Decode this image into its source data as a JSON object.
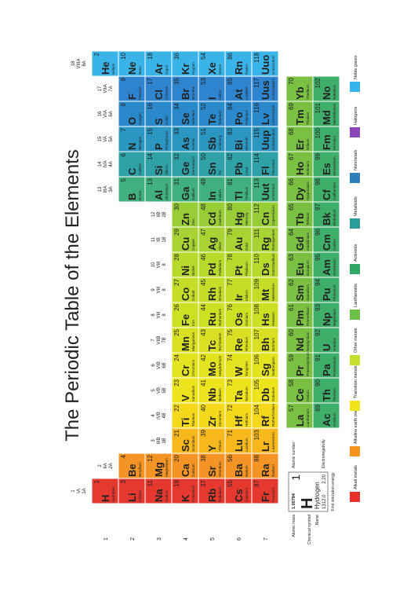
{
  "title": "The Periodic Table of the Elements",
  "groups": [
    [
      "1",
      "IA",
      "1A"
    ],
    [
      "2",
      "IIA",
      "2A"
    ],
    [
      "3",
      "IIIB",
      "3B"
    ],
    [
      "4",
      "IVB",
      "4B"
    ],
    [
      "5",
      "VB",
      "5B"
    ],
    [
      "6",
      "VIB",
      "6B"
    ],
    [
      "7",
      "VIIB",
      "7B"
    ],
    [
      "8",
      "VIII",
      "8"
    ],
    [
      "9",
      "VIII",
      "8"
    ],
    [
      "10",
      "VIII",
      "8"
    ],
    [
      "11",
      "IB",
      "1B"
    ],
    [
      "12",
      "IIB",
      "2B"
    ],
    [
      "13",
      "IIIA",
      "3A"
    ],
    [
      "14",
      "IVA",
      "4A"
    ],
    [
      "15",
      "VA",
      "5A"
    ],
    [
      "16",
      "VIA",
      "6A"
    ],
    [
      "17",
      "VIIA",
      "7A"
    ],
    [
      "18",
      "VIIIA",
      "8A"
    ]
  ],
  "periods": [
    "1",
    "2",
    "3",
    "4",
    "5",
    "6",
    "7"
  ],
  "group_colors": [
    "#e5392f",
    "#f39424",
    "#f7b81e",
    "#f3d81c",
    "#eee41e",
    "#e4e31f",
    "#d9e021",
    "#cde024",
    "#c3dd28",
    "#b9d92c",
    "#a9d332",
    "#98cd38",
    "#3fb07e",
    "#2fa2a8",
    "#2b96c2",
    "#2a89cb",
    "#2f84d0",
    "#3ab4e8"
  ],
  "lanthanide_color": "#7ac143",
  "actinide_color": "#3fae6a",
  "table": {
    "rows": [
      [
        [
          1,
          "H",
          "Hydrogen"
        ],
        null,
        null,
        null,
        null,
        null,
        null,
        null,
        null,
        null,
        null,
        null,
        null,
        null,
        null,
        null,
        null,
        [
          2,
          "He",
          "Helium"
        ]
      ],
      [
        [
          3,
          "Li",
          "Lithium"
        ],
        [
          4,
          "Be",
          "Beryllium"
        ],
        null,
        null,
        null,
        null,
        null,
        null,
        null,
        null,
        null,
        null,
        [
          5,
          "B",
          "Boron"
        ],
        [
          6,
          "C",
          "Carbon"
        ],
        [
          7,
          "N",
          "Nitrogen"
        ],
        [
          8,
          "O",
          "Oxygen"
        ],
        [
          9,
          "F",
          "Fluorine"
        ],
        [
          10,
          "Ne",
          "Neon"
        ]
      ],
      [
        [
          11,
          "Na",
          "Sodium"
        ],
        [
          12,
          "Mg",
          "Magnesium"
        ],
        null,
        null,
        null,
        null,
        null,
        null,
        null,
        null,
        null,
        null,
        [
          13,
          "Al",
          "Aluminium"
        ],
        [
          14,
          "Si",
          "Silicon"
        ],
        [
          15,
          "P",
          "Phosphorus"
        ],
        [
          16,
          "S",
          "Sulfur"
        ],
        [
          17,
          "Cl",
          "Chlorine"
        ],
        [
          18,
          "Ar",
          "Argon"
        ]
      ],
      [
        [
          19,
          "K",
          "Potassium"
        ],
        [
          20,
          "Ca",
          "Calcium"
        ],
        [
          21,
          "Sc",
          "Scandium"
        ],
        [
          22,
          "Ti",
          "Titanium"
        ],
        [
          23,
          "V",
          "Vanadium"
        ],
        [
          24,
          "Cr",
          "Chromium"
        ],
        [
          25,
          "Mn",
          "Manganese"
        ],
        [
          26,
          "Fe",
          "Iron"
        ],
        [
          27,
          "Co",
          "Cobalt"
        ],
        [
          28,
          "Ni",
          "Nickel"
        ],
        [
          29,
          "Cu",
          "Copper"
        ],
        [
          30,
          "Zn",
          "Zinc"
        ],
        [
          31,
          "Ga",
          "Gallium"
        ],
        [
          32,
          "Ge",
          "Germanium"
        ],
        [
          33,
          "As",
          "Arsenic"
        ],
        [
          34,
          "Se",
          "Selenium"
        ],
        [
          35,
          "Br",
          "Bromine"
        ],
        [
          36,
          "Kr",
          "Krypton"
        ]
      ],
      [
        [
          37,
          "Rb",
          "Rubidium"
        ],
        [
          38,
          "Sr",
          "Strontium"
        ],
        [
          39,
          "Y",
          "Yttrium"
        ],
        [
          40,
          "Zr",
          "Zirconium"
        ],
        [
          41,
          "Nb",
          "Niobium"
        ],
        [
          42,
          "Mo",
          "Molybdenum"
        ],
        [
          43,
          "Tc",
          "Technetium"
        ],
        [
          44,
          "Ru",
          "Ruthenium"
        ],
        [
          45,
          "Rh",
          "Rhodium"
        ],
        [
          46,
          "Pd",
          "Palladium"
        ],
        [
          47,
          "Ag",
          "Silver"
        ],
        [
          48,
          "Cd",
          "Cadmium"
        ],
        [
          49,
          "In",
          "Indium"
        ],
        [
          50,
          "Sn",
          "Tin"
        ],
        [
          51,
          "Sb",
          "Antimony"
        ],
        [
          52,
          "Te",
          "Tellurium"
        ],
        [
          53,
          "I",
          "Iodine"
        ],
        [
          54,
          "Xe",
          "Xenon"
        ]
      ],
      [
        [
          55,
          "Cs",
          "Caesium"
        ],
        [
          56,
          "Ba",
          "Barium"
        ],
        [
          71,
          "Lu",
          "Lutetium"
        ],
        [
          72,
          "Hf",
          "Hafnium"
        ],
        [
          73,
          "Ta",
          "Tantalum"
        ],
        [
          74,
          "W",
          "Tungsten"
        ],
        [
          75,
          "Re",
          "Rhenium"
        ],
        [
          76,
          "Os",
          "Osmium"
        ],
        [
          77,
          "Ir",
          "Iridium"
        ],
        [
          78,
          "Pt",
          "Platinum"
        ],
        [
          79,
          "Au",
          "Gold"
        ],
        [
          80,
          "Hg",
          "Mercury"
        ],
        [
          81,
          "Tl",
          "Thallium"
        ],
        [
          82,
          "Pb",
          "Lead"
        ],
        [
          83,
          "Bi",
          "Bismuth"
        ],
        [
          84,
          "Po",
          "Polonium"
        ],
        [
          85,
          "At",
          "Astatine"
        ],
        [
          86,
          "Rn",
          "Radon"
        ]
      ],
      [
        [
          87,
          "Fr",
          "Francium"
        ],
        [
          88,
          "Ra",
          "Radium"
        ],
        [
          103,
          "Lr",
          "Lawrencium"
        ],
        [
          104,
          "Rf",
          "Rutherfordium"
        ],
        [
          105,
          "Db",
          "Dubnium"
        ],
        [
          106,
          "Sg",
          "Seaborgium"
        ],
        [
          107,
          "Bh",
          "Bohrium"
        ],
        [
          108,
          "Hs",
          "Hassium"
        ],
        [
          109,
          "Mt",
          "Meitnerium"
        ],
        [
          110,
          "Ds",
          "Darmstadtium"
        ],
        [
          111,
          "Rg",
          "Roentgenium"
        ],
        [
          112,
          "Cn",
          "Copernicium"
        ],
        [
          113,
          "Uut",
          "Ununtrium"
        ],
        [
          114,
          "Fl",
          "Flerovium"
        ],
        [
          115,
          "Uup",
          "Ununpentium"
        ],
        [
          116,
          "Lv",
          "Livermorium"
        ],
        [
          117,
          "Uus",
          "Ununseptium"
        ],
        [
          118,
          "Uuo",
          "Ununoctium"
        ]
      ]
    ],
    "lanthanides": [
      [
        57,
        "La",
        "Lanthanum"
      ],
      [
        58,
        "Ce",
        "Cerium"
      ],
      [
        59,
        "Pr",
        "Praseodymium"
      ],
      [
        60,
        "Nd",
        "Neodymium"
      ],
      [
        61,
        "Pm",
        "Promethium"
      ],
      [
        62,
        "Sm",
        "Samarium"
      ],
      [
        63,
        "Eu",
        "Europium"
      ],
      [
        64,
        "Gd",
        "Gadolinium"
      ],
      [
        65,
        "Tb",
        "Terbium"
      ],
      [
        66,
        "Dy",
        "Dysprosium"
      ],
      [
        67,
        "Ho",
        "Holmium"
      ],
      [
        68,
        "Er",
        "Erbium"
      ],
      [
        69,
        "Tm",
        "Thulium"
      ],
      [
        70,
        "Yb",
        "Ytterbium"
      ]
    ],
    "actinides": [
      [
        89,
        "Ac",
        "Actinium"
      ],
      [
        90,
        "Th",
        "Thorium"
      ],
      [
        91,
        "Pa",
        "Protactinium"
      ],
      [
        92,
        "U",
        "Uranium"
      ],
      [
        93,
        "Np",
        "Neptunium"
      ],
      [
        94,
        "Pu",
        "Plutonium"
      ],
      [
        95,
        "Am",
        "Americium"
      ],
      [
        96,
        "Cm",
        "Curium"
      ],
      [
        97,
        "Bk",
        "Berkelium"
      ],
      [
        98,
        "Cf",
        "Californium"
      ],
      [
        99,
        "Es",
        "Einsteinium"
      ],
      [
        100,
        "Fm",
        "Fermium"
      ],
      [
        101,
        "Md",
        "Mendelevium"
      ],
      [
        102,
        "No",
        "Nobelium"
      ]
    ]
  },
  "key": {
    "number": 1,
    "symbol": "H",
    "name": "Hydrogen",
    "mass": "1.00794",
    "electronegativity": "2.20",
    "ionization": "1312.0",
    "labels": {
      "number": "Atomic number",
      "symbol": "Chemical symbol",
      "name": "Name",
      "mass": "Atomic mass",
      "electronegativity": "Electronegativity",
      "ionization": "First ionization energy"
    }
  },
  "legend": [
    {
      "name": "Alkali metals",
      "color": "#e8312a"
    },
    {
      "name": "Alkaline earth metals",
      "color": "#f7941d"
    },
    {
      "name": "Transition metals",
      "color": "#f2e41c"
    },
    {
      "name": "Other metals",
      "color": "#c6de2c"
    },
    {
      "name": "Lanthanoids",
      "color": "#6cc04a"
    },
    {
      "name": "Actinoids",
      "color": "#2fa865"
    },
    {
      "name": "Metalloids",
      "color": "#2a9d9a"
    },
    {
      "name": "Nonmetals",
      "color": "#2e7fb8"
    },
    {
      "name": "Halogens",
      "color": "#8a45b6"
    },
    {
      "name": "Noble gases",
      "color": "#35b3ea"
    }
  ]
}
